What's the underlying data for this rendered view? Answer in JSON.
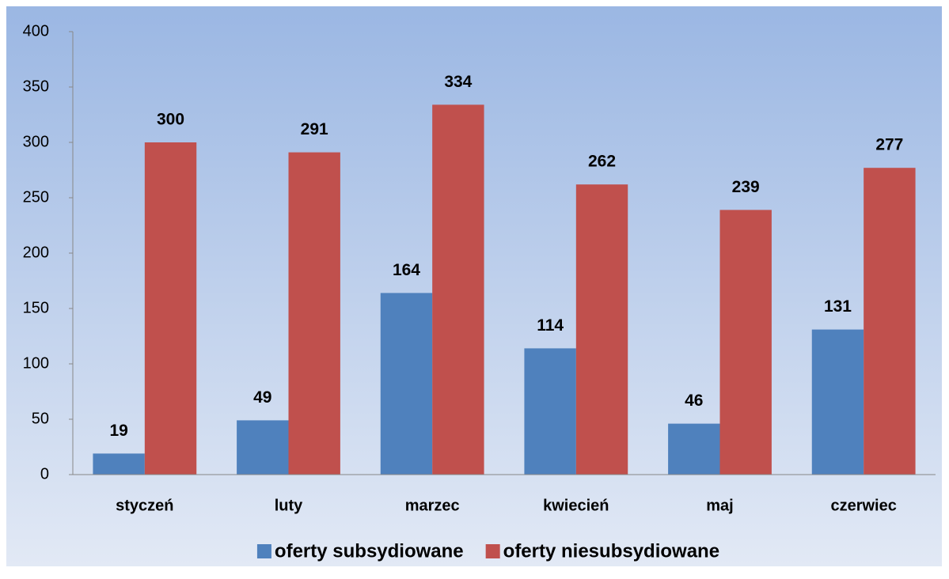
{
  "chart_data": {
    "type": "bar",
    "categories": [
      "styczeń",
      "luty",
      "marzec",
      "kwiecień",
      "maj",
      "czerwiec"
    ],
    "series": [
      {
        "name": "oferty subsydiowane",
        "color": "#4f81bd",
        "values": [
          19,
          49,
          164,
          114,
          46,
          131
        ]
      },
      {
        "name": "oferty niesubsydiowane",
        "color": "#c0504d",
        "values": [
          300,
          291,
          334,
          262,
          239,
          277
        ]
      }
    ],
    "ylim": [
      0,
      400
    ],
    "yticks": [
      0,
      50,
      100,
      150,
      200,
      250,
      300,
      350,
      400
    ],
    "legend": "bottom"
  }
}
